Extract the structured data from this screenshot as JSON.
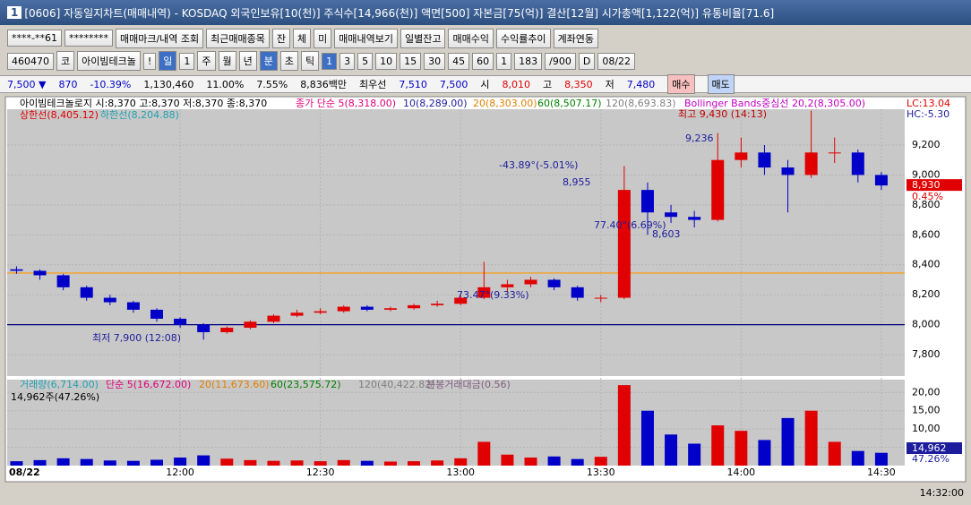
{
  "window": {
    "number": "1",
    "title": "[0606] 자동일지차트(매매내역) - KOSDAQ 외국인보유[10(천)] 주식수[14,966(천)] 액면[500] 자본금[75(억)] 결산[12월] 시가총액[1,122(억)] 유통비율[71.6]"
  },
  "toolbar1": [
    "****-**61",
    "********",
    "매매마크/내역 조회",
    "최근매매종목",
    "잔",
    "체",
    "미",
    "매매내역보기",
    "일별잔고",
    "매매수익",
    "수익률추이",
    "계좌연동"
  ],
  "toolbar2": [
    "460470",
    "코",
    "아이빔테크놀",
    "!",
    "일",
    "1",
    "주",
    "월",
    "년",
    "분",
    "초",
    "틱",
    "1",
    "3",
    "5",
    "10",
    "15",
    "30",
    "45",
    "60",
    "1",
    "183",
    "/900",
    "D",
    "08/22"
  ],
  "quote": [
    "7,500 ▼",
    "870",
    "-10.39%",
    "1,130,460",
    "11.00%",
    "7.55%",
    "8,836백만",
    "최우선",
    "7,510",
    "7,500",
    "시",
    "8,010",
    "고",
    "8,350",
    "저",
    "7,480",
    "매수",
    "매도"
  ],
  "chart_data": {
    "type": "candlestick",
    "legend": [
      {
        "text": "아이빔테크놀로지 시:8,370 고:8,370 저:8,370 종:8,370",
        "color": "#000000"
      },
      {
        "text": "종가 단순 5(8,318.00)",
        "color": "#e0007a"
      },
      {
        "text": "10(8,289.00)",
        "color": "#1c1c9c"
      },
      {
        "text": "20(8,303.00)",
        "color": "#e08000"
      },
      {
        "text": "60(8,507.17)",
        "color": "#008000"
      },
      {
        "text": "120(8,693.83)",
        "color": "#808080"
      },
      {
        "text": "Bollinger Bands중심선 20,2(8,305.00)",
        "color": "#c000c0"
      },
      {
        "text": "상한선(8,405.12)",
        "color": "#e00000"
      },
      {
        "text": "하한선(8,204.88)",
        "color": "#20a0b0"
      }
    ],
    "indicator_labels": [
      {
        "text": "LC:13.04",
        "color": "#e00000"
      },
      {
        "text": "HC:-5.30",
        "color": "#1c1c9c"
      }
    ],
    "date_label": "08/22",
    "x": [
      "11:25",
      "11:30",
      "11:35",
      "11:40",
      "11:45",
      "11:50",
      "11:55",
      "12:00",
      "12:05",
      "12:10",
      "12:15",
      "12:20",
      "12:25",
      "12:30",
      "12:35",
      "12:40",
      "12:45",
      "12:50",
      "12:55",
      "13:00",
      "13:05",
      "13:10",
      "13:15",
      "13:20",
      "13:25",
      "13:30",
      "13:35",
      "13:40",
      "13:45",
      "13:50",
      "13:55",
      "14:00",
      "14:05",
      "14:10",
      "14:15",
      "14:20",
      "14:25",
      "14:30"
    ],
    "open": [
      8370,
      8360,
      8330,
      8250,
      8180,
      8150,
      8100,
      8040,
      8000,
      7950,
      7980,
      8020,
      8060,
      8080,
      8090,
      8120,
      8100,
      8110,
      8130,
      8140,
      8180,
      8250,
      8270,
      8300,
      8250,
      8180,
      8180,
      8900,
      8750,
      8720,
      8700,
      9100,
      9150,
      9050,
      9000,
      9150,
      9150,
      9000
    ],
    "high": [
      8390,
      8370,
      8340,
      8260,
      8200,
      8160,
      8110,
      8050,
      8010,
      7990,
      8030,
      8070,
      8100,
      8110,
      8130,
      8130,
      8120,
      8140,
      8160,
      8200,
      8420,
      8300,
      8320,
      8310,
      8260,
      8200,
      9060,
      8950,
      8800,
      8760,
      9280,
      9250,
      9200,
      9100,
      9430,
      9250,
      9170,
      9020
    ],
    "low": [
      8340,
      8300,
      8230,
      8160,
      8130,
      8080,
      8020,
      7980,
      7900,
      7940,
      7970,
      8010,
      8050,
      8070,
      8080,
      8090,
      8090,
      8100,
      8120,
      8130,
      8170,
      8220,
      8250,
      8230,
      8160,
      8150,
      8170,
      8600,
      8680,
      8650,
      8690,
      9050,
      9000,
      8750,
      8980,
      9080,
      8950,
      8900
    ],
    "close": [
      8360,
      8330,
      8250,
      8180,
      8150,
      8100,
      8040,
      8000,
      7950,
      7980,
      8020,
      8060,
      8080,
      8090,
      8120,
      8100,
      8110,
      8130,
      8140,
      8180,
      8250,
      8270,
      8300,
      8250,
      8180,
      8180,
      8900,
      8750,
      8720,
      8700,
      9100,
      9150,
      9050,
      9000,
      9150,
      9150,
      9000,
      8930
    ],
    "up_color": "#e00000",
    "down_color": "#0000c8",
    "xlim": [
      "11:23",
      "14:35"
    ],
    "xticks": [
      "12:00",
      "12:30",
      "13:00",
      "13:30",
      "14:00",
      "14:30"
    ],
    "ylim": [
      7657,
      9439
    ],
    "yticks": [
      {
        "value": 7800,
        "label": "7,800"
      },
      {
        "value": 8000,
        "label": "8,000"
      },
      {
        "value": 8200,
        "label": "8,200"
      },
      {
        "value": 8400,
        "label": "8,400"
      },
      {
        "value": 8600,
        "label": "8,600"
      },
      {
        "value": 8800,
        "label": "8,800"
      },
      {
        "value": 9000,
        "label": "9,000"
      },
      {
        "value": 9200,
        "label": "9,200"
      }
    ],
    "reference_lines": [
      {
        "value": 8000,
        "color": "#000080"
      },
      {
        "value": 8345,
        "color": "#ff9900"
      }
    ],
    "current": {
      "value": 8930,
      "label": "8,930"
    },
    "current_change": "0.45%",
    "annotations": [
      {
        "text": "최저 7,900 (12:08)",
        "color": "#1c1c9c"
      },
      {
        "text": "최고 9,430 (14:13)",
        "color": "#c00000"
      },
      {
        "text": "-43.89°(-5.01%)",
        "color": "#1c1c9c"
      },
      {
        "text": "8,955",
        "color": "#1c1c9c"
      },
      {
        "text": "73.47°(9.33%)",
        "color": "#1c1c9c"
      },
      {
        "text": "77.40°(6.69%)",
        "color": "#1c1c9c"
      },
      {
        "text": "8,603",
        "color": "#1c1c9c"
      },
      {
        "text": "9,236",
        "color": "#1c1c9c"
      }
    ],
    "volume": {
      "legend": [
        {
          "text": "거래량(6,714.00)",
          "color": "#20a0b0"
        },
        {
          "text": "단순 5(16,672.00)",
          "color": "#e0007a"
        },
        {
          "text": "20(11,673.60)",
          "color": "#e08000"
        },
        {
          "text": "60(23,575.72)",
          "color": "#008000"
        },
        {
          "text": "120(40,422.82)",
          "color": "#808080"
        },
        {
          "text": "분봉거래대금(0.56)",
          "color": "#806080"
        }
      ],
      "summary": "14,962주(47.26%)",
      "values": [
        1.2,
        1.5,
        2.0,
        1.8,
        1.4,
        1.3,
        1.6,
        2.2,
        2.8,
        1.9,
        1.5,
        1.3,
        1.4,
        1.2,
        1.5,
        1.3,
        1.1,
        1.2,
        1.4,
        2.0,
        6.5,
        3.0,
        2.2,
        2.5,
        1.8,
        2.4,
        22.0,
        15.0,
        8.5,
        6.0,
        11.0,
        9.5,
        7.0,
        13.0,
        15.0,
        6.5,
        4.0,
        3.5
      ],
      "ylim": [
        0,
        23.5
      ],
      "yticks": [
        {
          "value": 5,
          "label": "5,00"
        },
        {
          "value": 10,
          "label": "10,00"
        },
        {
          "value": 15,
          "label": "15,00"
        },
        {
          "value": 20,
          "label": "20,00"
        }
      ],
      "current_label": "14,962",
      "ratio_label": "47.26%"
    }
  },
  "clock": "14:32:00"
}
